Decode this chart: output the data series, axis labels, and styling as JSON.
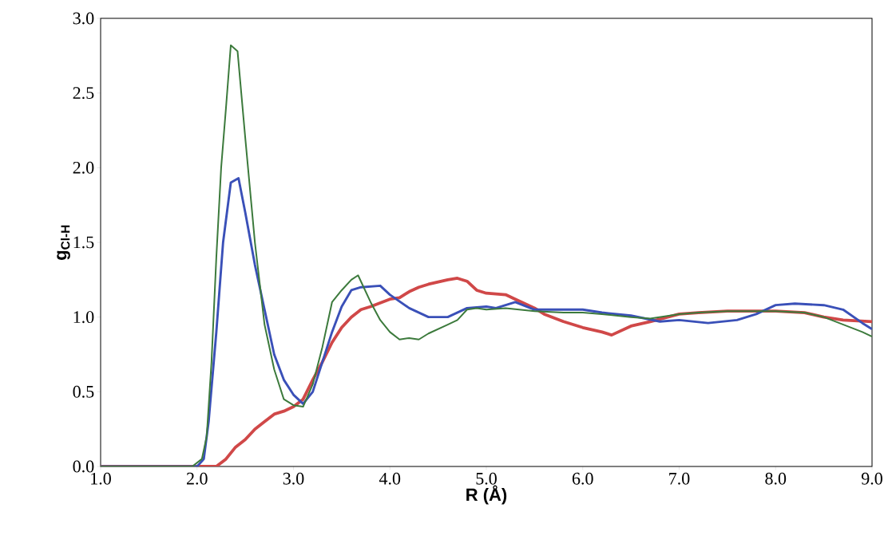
{
  "chart_data": {
    "type": "line",
    "xlabel": "R (Å)",
    "ylabel": "g$_{Cl-H}$",
    "xlim": [
      1,
      9
    ],
    "ylim": [
      0,
      3
    ],
    "xticks": [
      {
        "value": 1,
        "label": "1.0"
      },
      {
        "value": 2,
        "label": "2.0"
      },
      {
        "value": 3,
        "label": "3.0"
      },
      {
        "value": 4,
        "label": "4.0"
      },
      {
        "value": 5,
        "label": "5.0"
      },
      {
        "value": 6,
        "label": "6.0"
      },
      {
        "value": 7,
        "label": "7.0"
      },
      {
        "value": 8,
        "label": "8.0"
      },
      {
        "value": 9,
        "label": "9.0"
      }
    ],
    "yticks": [
      {
        "value": 0,
        "label": "0.0"
      },
      {
        "value": 0.5,
        "label": "0.5"
      },
      {
        "value": 1,
        "label": "1.0"
      },
      {
        "value": 1.5,
        "label": "1.5"
      },
      {
        "value": 2,
        "label": "2.0"
      },
      {
        "value": 2.5,
        "label": "2.5"
      },
      {
        "value": 3,
        "label": "3.0"
      }
    ],
    "grid": false,
    "marker": "none",
    "line_style": "solid",
    "series": [
      {
        "color": "#d04848",
        "x": [
          1.0,
          2.2,
          2.3,
          2.4,
          2.5,
          2.6,
          2.7,
          2.8,
          2.9,
          3.0,
          3.1,
          3.2,
          3.3,
          3.4,
          3.5,
          3.6,
          3.7,
          3.8,
          4.0,
          4.1,
          4.2,
          4.3,
          4.4,
          4.6,
          4.7,
          4.8,
          4.9,
          5.0,
          5.2,
          5.3,
          5.5,
          5.6,
          5.8,
          6.0,
          6.2,
          6.3,
          6.5,
          6.7,
          7.0,
          7.2,
          7.5,
          7.8,
          8.0,
          8.3,
          8.5,
          8.7,
          9.0
        ],
        "values": [
          0,
          0,
          0.05,
          0.13,
          0.18,
          0.25,
          0.3,
          0.35,
          0.37,
          0.4,
          0.45,
          0.58,
          0.7,
          0.83,
          0.93,
          1.0,
          1.05,
          1.07,
          1.12,
          1.13,
          1.17,
          1.2,
          1.22,
          1.25,
          1.26,
          1.24,
          1.18,
          1.16,
          1.15,
          1.12,
          1.06,
          1.02,
          0.97,
          0.93,
          0.9,
          0.88,
          0.94,
          0.97,
          1.02,
          1.03,
          1.04,
          1.04,
          1.04,
          1.03,
          1.0,
          0.98,
          0.97
        ]
      },
      {
        "color": "#3a50b8",
        "x": [
          1.0,
          2.0,
          2.07,
          2.12,
          2.2,
          2.27,
          2.35,
          2.43,
          2.5,
          2.6,
          2.7,
          2.8,
          2.9,
          3.0,
          3.1,
          3.2,
          3.3,
          3.4,
          3.5,
          3.6,
          3.7,
          3.9,
          4.0,
          4.2,
          4.4,
          4.6,
          4.8,
          5.0,
          5.1,
          5.2,
          5.3,
          5.5,
          5.8,
          6.0,
          6.2,
          6.5,
          6.8,
          7.0,
          7.3,
          7.6,
          7.8,
          8.0,
          8.2,
          8.5,
          8.7,
          8.9,
          9.0
        ],
        "values": [
          0,
          0,
          0.05,
          0.3,
          0.9,
          1.5,
          1.9,
          1.93,
          1.7,
          1.35,
          1.05,
          0.75,
          0.58,
          0.48,
          0.42,
          0.5,
          0.7,
          0.9,
          1.07,
          1.18,
          1.2,
          1.21,
          1.15,
          1.06,
          1.0,
          1.0,
          1.06,
          1.07,
          1.06,
          1.08,
          1.1,
          1.05,
          1.05,
          1.05,
          1.03,
          1.01,
          0.97,
          0.98,
          0.96,
          0.98,
          1.02,
          1.08,
          1.09,
          1.08,
          1.05,
          0.96,
          0.92
        ]
      },
      {
        "color": "#3c7a3c",
        "x": [
          1.0,
          1.95,
          2.05,
          2.1,
          2.15,
          2.2,
          2.25,
          2.3,
          2.35,
          2.42,
          2.5,
          2.6,
          2.7,
          2.8,
          2.9,
          3.0,
          3.1,
          3.2,
          3.3,
          3.4,
          3.5,
          3.6,
          3.67,
          3.8,
          3.9,
          4.0,
          4.1,
          4.2,
          4.3,
          4.4,
          4.5,
          4.6,
          4.7,
          4.8,
          4.9,
          5.0,
          5.2,
          5.5,
          5.8,
          6.0,
          6.2,
          6.5,
          6.7,
          7.0,
          7.2,
          7.5,
          7.8,
          8.0,
          8.3,
          8.5,
          8.7,
          8.9,
          9.0
        ],
        "values": [
          0,
          0,
          0.05,
          0.2,
          0.7,
          1.4,
          2.0,
          2.4,
          2.82,
          2.78,
          2.2,
          1.5,
          0.95,
          0.65,
          0.45,
          0.41,
          0.4,
          0.55,
          0.8,
          1.1,
          1.18,
          1.25,
          1.28,
          1.1,
          0.98,
          0.9,
          0.85,
          0.86,
          0.85,
          0.89,
          0.92,
          0.95,
          0.98,
          1.05,
          1.06,
          1.05,
          1.06,
          1.04,
          1.03,
          1.03,
          1.02,
          1.0,
          0.99,
          1.02,
          1.03,
          1.04,
          1.04,
          1.04,
          1.03,
          1.0,
          0.95,
          0.9,
          0.87
        ]
      }
    ]
  }
}
